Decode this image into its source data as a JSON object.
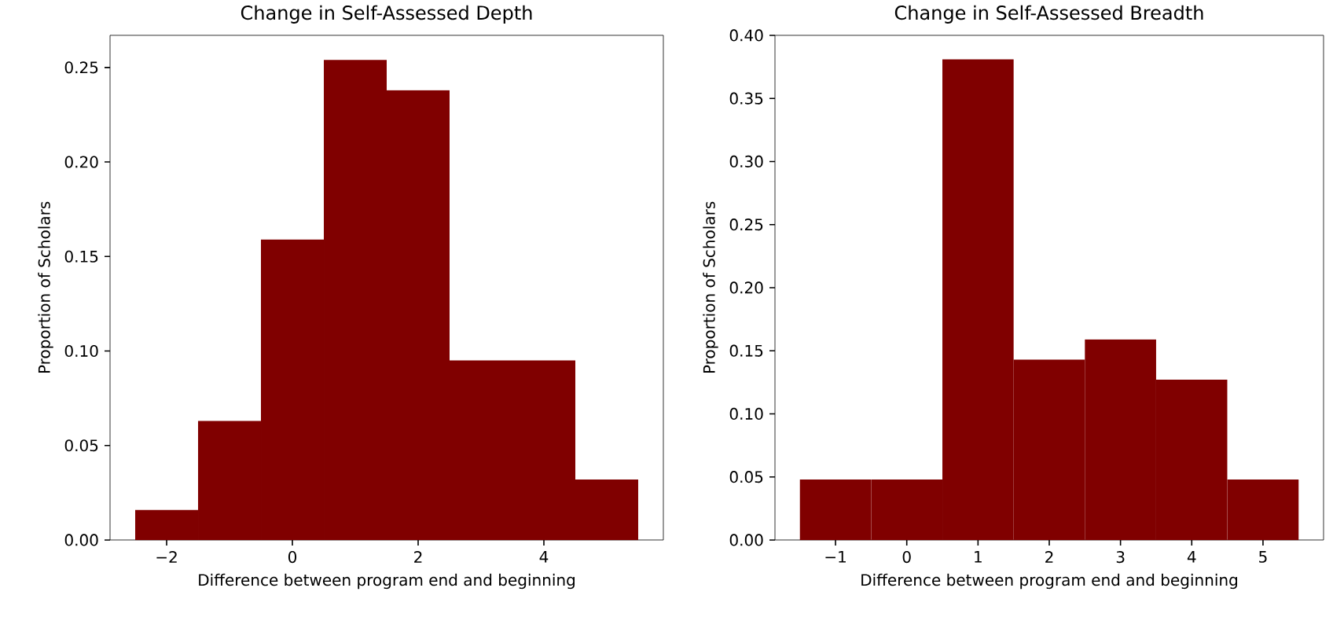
{
  "chart_data": [
    {
      "type": "histogram",
      "title": "Change in Self-Assessed Depth",
      "xlabel": "Difference between program end and beginning",
      "ylabel": "Proportion of Scholars",
      "color": "#800000",
      "bins": [
        -2.5,
        -1.5,
        -0.5,
        0.5,
        1.5,
        2.5,
        3.5,
        4.5,
        5.5
      ],
      "values": [
        0.016,
        0.063,
        0.159,
        0.254,
        0.238,
        0.095,
        0.095,
        0.032
      ],
      "xlim": [
        -2.9,
        5.9
      ],
      "ylim": [
        0,
        0.267
      ],
      "xticks": [
        {
          "value": -2,
          "label": "−2"
        },
        0,
        2,
        4
      ],
      "yticks": [
        {
          "value": 0,
          "label": "0.00"
        },
        {
          "value": 0.05,
          "label": "0.05"
        },
        {
          "value": 0.1,
          "label": "0.10"
        },
        {
          "value": 0.15,
          "label": "0.15"
        },
        {
          "value": 0.2,
          "label": "0.20"
        },
        {
          "value": 0.25,
          "label": "0.25"
        }
      ]
    },
    {
      "type": "histogram",
      "title": "Change in Self-Assessed Breadth",
      "xlabel": "Difference between program end and beginning",
      "ylabel": "Proportion of Scholars",
      "color": "#800000",
      "bins": [
        -1.5,
        -0.5,
        0.5,
        1.5,
        2.5,
        3.5,
        4.5,
        5.5
      ],
      "values": [
        0.048,
        0.048,
        0.381,
        0.143,
        0.159,
        0.127,
        0.048
      ],
      "xlim": [
        -1.85,
        5.85
      ],
      "ylim": [
        0,
        0.4
      ],
      "xticks": [
        {
          "value": -1,
          "label": "−1"
        },
        0,
        1,
        2,
        3,
        4,
        5
      ],
      "yticks": [
        {
          "value": 0,
          "label": "0.00"
        },
        {
          "value": 0.05,
          "label": "0.05"
        },
        {
          "value": 0.1,
          "label": "0.10"
        },
        {
          "value": 0.15,
          "label": "0.15"
        },
        {
          "value": 0.2,
          "label": "0.20"
        },
        {
          "value": 0.25,
          "label": "0.25"
        },
        {
          "value": 0.3,
          "label": "0.30"
        },
        {
          "value": 0.35,
          "label": "0.35"
        },
        {
          "value": 0.4,
          "label": "0.40"
        }
      ]
    }
  ]
}
